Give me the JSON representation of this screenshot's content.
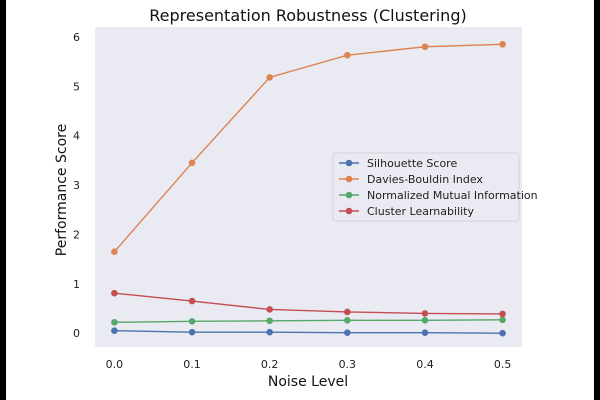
{
  "chart_data": {
    "type": "line",
    "title": "Representation Robustness (Clustering)",
    "xlabel": "Noise Level",
    "ylabel": "Performance Score",
    "x": [
      0.0,
      0.1,
      0.2,
      0.3,
      0.4,
      0.5
    ],
    "x_tick_labels": [
      "0.0",
      "0.1",
      "0.2",
      "0.3",
      "0.4",
      "0.5"
    ],
    "y_ticks": [
      0,
      1,
      2,
      3,
      4,
      5,
      6
    ],
    "xlim": [
      -0.025,
      0.525
    ],
    "ylim": [
      -0.28,
      6.2
    ],
    "grid": false,
    "legend_position": "center-right",
    "background_color": "#eaeaf2",
    "series": [
      {
        "name": "Silhouette Score",
        "color": "#4c72b0",
        "values": [
          0.05,
          0.02,
          0.02,
          0.01,
          0.01,
          0.0
        ]
      },
      {
        "name": "Davies-Bouldin Index",
        "color": "#dd8452",
        "values": [
          1.65,
          3.45,
          5.18,
          5.63,
          5.8,
          5.85
        ]
      },
      {
        "name": "Normalized Mutual Information",
        "color": "#55a868",
        "values": [
          0.22,
          0.24,
          0.25,
          0.26,
          0.26,
          0.27
        ]
      },
      {
        "name": "Cluster Learnability",
        "color": "#c44e52",
        "values": [
          0.81,
          0.65,
          0.48,
          0.43,
          0.4,
          0.39
        ]
      }
    ]
  }
}
